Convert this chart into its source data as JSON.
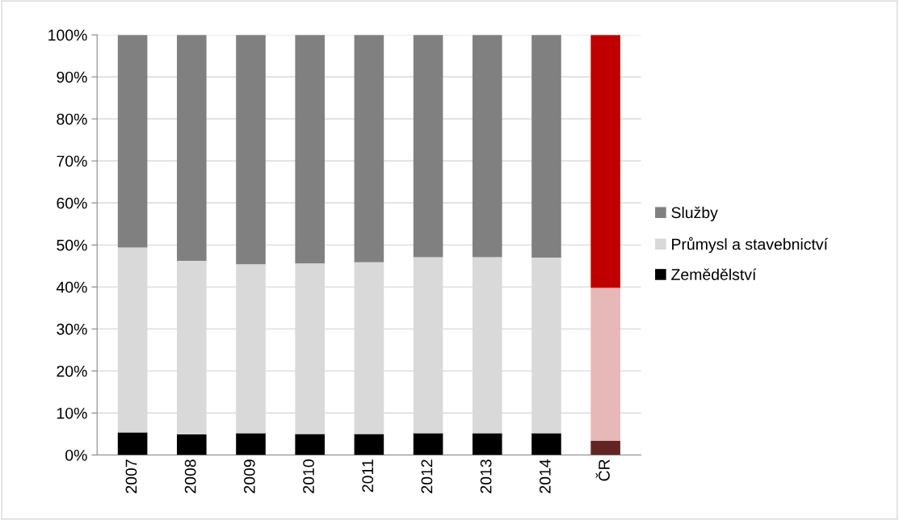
{
  "chart_data": {
    "type": "bar",
    "stacked": true,
    "categories": [
      "2007",
      "2008",
      "2009",
      "2010",
      "2011",
      "2012",
      "2013",
      "2014",
      "ČR"
    ],
    "series": [
      {
        "name": "Zemědělství",
        "color": "#000000",
        "colors": [
          "#000000",
          "#000000",
          "#000000",
          "#000000",
          "#000000",
          "#000000",
          "#000000",
          "#000000",
          "#632523"
        ],
        "values": [
          5.4,
          4.9,
          5.2,
          5.0,
          5.0,
          5.2,
          5.2,
          5.2,
          3.4
        ]
      },
      {
        "name": "Průmysl a stavebnictví",
        "color": "#d9d9d9",
        "colors": [
          "#d9d9d9",
          "#d9d9d9",
          "#d9d9d9",
          "#d9d9d9",
          "#d9d9d9",
          "#d9d9d9",
          "#d9d9d9",
          "#d9d9d9",
          "#e6b9b8"
        ],
        "values": [
          44.0,
          41.3,
          40.2,
          40.6,
          40.9,
          41.9,
          41.9,
          41.8,
          36.4
        ]
      },
      {
        "name": "Služby",
        "color": "#808080",
        "colors": [
          "#808080",
          "#808080",
          "#808080",
          "#808080",
          "#808080",
          "#808080",
          "#808080",
          "#808080",
          "#c00000"
        ],
        "values": [
          50.6,
          53.8,
          54.6,
          54.4,
          54.1,
          52.9,
          52.9,
          53.0,
          60.2
        ]
      }
    ],
    "ylim": [
      0,
      100
    ],
    "yticks": [
      {
        "value": 0,
        "label": "0%"
      },
      {
        "value": 10,
        "label": "10%"
      },
      {
        "value": 20,
        "label": "20%"
      },
      {
        "value": 30,
        "label": "30%"
      },
      {
        "value": 40,
        "label": "40%"
      },
      {
        "value": 50,
        "label": "50%"
      },
      {
        "value": 60,
        "label": "60%"
      },
      {
        "value": 70,
        "label": "70%"
      },
      {
        "value": 80,
        "label": "80%"
      },
      {
        "value": 90,
        "label": "90%"
      },
      {
        "value": 100,
        "label": "100%"
      }
    ],
    "grid": "y",
    "legend": "right"
  }
}
